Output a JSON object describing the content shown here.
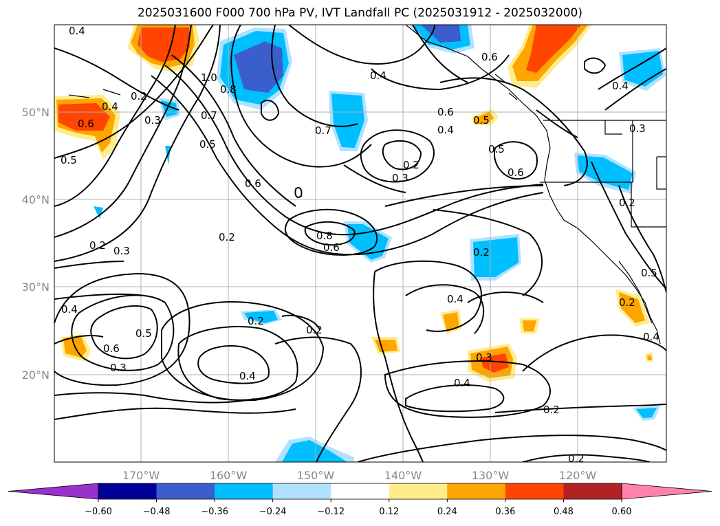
{
  "title": "2025031600 F000 700 hPa PV, IVT Landfall PC (2025031912 - 2025032000)",
  "map": {
    "lat_labels": [
      "50°N",
      "40°N",
      "30°N",
      "20°N"
    ],
    "lon_labels": [
      "170°W",
      "160°W",
      "150°W",
      "140°W",
      "130°W",
      "120°W"
    ],
    "contour_labels": [
      "0.4",
      "0.6",
      "0.2",
      "0.4",
      "0.3",
      "0.5",
      "1.0",
      "0.8",
      "0.7",
      "0.5",
      "0.6",
      "0.4",
      "0.7",
      "0.6",
      "0.4",
      "0.3",
      "0.2",
      "0.5",
      "0.6",
      "0.5",
      "0.6",
      "0.4",
      "0.3",
      "0.2",
      "0.8",
      "0.6",
      "0.2",
      "0.3",
      "0.2",
      "0.4",
      "0.6",
      "0.5",
      "0.3",
      "0.2",
      "0.2",
      "0.4",
      "0.4",
      "0.3",
      "0.4",
      "0.2",
      "0.2",
      "0.5",
      "0.4",
      "0.2",
      "0.2"
    ]
  },
  "colorbar": {
    "ticks": [
      "−0.60",
      "−0.48",
      "−0.36",
      "−0.24",
      "−0.12",
      "0.12",
      "0.24",
      "0.36",
      "0.48",
      "0.60"
    ],
    "colors": [
      "#9932cc",
      "#000099",
      "#3a5fcd",
      "#00bfff",
      "#b0e2ff",
      "#ffffff",
      "#ffec8b",
      "#ffa500",
      "#ff4500",
      "#b22222",
      "#ff82ab"
    ]
  }
}
